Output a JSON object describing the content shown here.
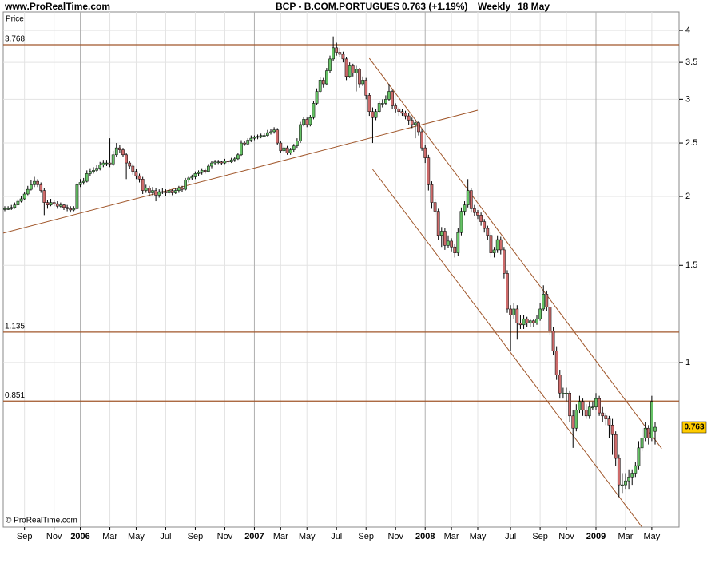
{
  "header": {
    "site": "www.ProRealTime.com",
    "symbol": "BCP - B.COM.PORTUGUES",
    "quote": "0.763 (+1.19%)",
    "period": "Weekly",
    "date": "18 May"
  },
  "footer": "© ProRealTime.com",
  "chart_data": {
    "type": "candlestick",
    "y_label": "Price",
    "log_scale": true,
    "grid": true,
    "up_color": "#66c266",
    "down_color": "#cd6b6b",
    "line_color": "#a0562a",
    "ylim": [
      0.503,
      4.32
    ],
    "yticks": [
      1,
      1.5,
      2,
      2.5,
      3,
      3.5,
      4
    ],
    "levels": [
      3.768,
      1.135,
      0.851
    ],
    "last_price": 0.763,
    "trendlines": [
      {
        "x": [
          -0.5,
          144
        ],
        "y": [
          1.716,
          2.867
        ]
      },
      {
        "x": [
          111,
          200
        ],
        "y": [
          3.56,
          0.698
        ]
      },
      {
        "x": [
          112,
          194
        ],
        "y": [
          2.24,
          0.503
        ]
      }
    ],
    "categories": [
      null,
      null,
      null,
      null,
      null,
      null,
      "Sep",
      null,
      null,
      null,
      null,
      null,
      null,
      null,
      null,
      "Nov",
      null,
      null,
      null,
      null,
      null,
      null,
      null,
      "2006",
      null,
      null,
      null,
      null,
      null,
      null,
      null,
      null,
      "Mar",
      null,
      null,
      null,
      null,
      null,
      null,
      null,
      "May",
      null,
      null,
      null,
      null,
      null,
      null,
      null,
      null,
      "Jul",
      null,
      null,
      null,
      null,
      null,
      null,
      null,
      null,
      "Sep",
      null,
      null,
      null,
      null,
      null,
      null,
      null,
      null,
      "Nov",
      null,
      null,
      null,
      null,
      null,
      null,
      null,
      null,
      "2007",
      null,
      null,
      null,
      null,
      null,
      null,
      null,
      "Mar",
      null,
      null,
      null,
      null,
      null,
      null,
      null,
      "May",
      null,
      null,
      null,
      null,
      null,
      null,
      null,
      null,
      "Jul",
      null,
      null,
      null,
      null,
      null,
      null,
      null,
      null,
      "Sep",
      null,
      null,
      null,
      null,
      null,
      null,
      null,
      null,
      "Nov",
      null,
      null,
      null,
      null,
      null,
      null,
      null,
      null,
      "2008",
      null,
      null,
      null,
      null,
      null,
      null,
      null,
      "Mar",
      null,
      null,
      null,
      null,
      null,
      null,
      null,
      "May",
      null,
      null,
      null,
      null,
      null,
      null,
      null,
      null,
      null,
      "Jul",
      null,
      null,
      null,
      null,
      null,
      null,
      null,
      null,
      "Sep",
      null,
      null,
      null,
      null,
      null,
      null,
      null,
      "Nov",
      null,
      null,
      null,
      null,
      null,
      null,
      null,
      null,
      "2009",
      null,
      null,
      null,
      null,
      null,
      null,
      null,
      null,
      "Mar",
      null,
      null,
      null,
      null,
      null,
      null,
      null,
      "May",
      null
    ],
    "candles": [
      [
        1.9,
        1.92,
        1.88,
        1.9
      ],
      [
        1.9,
        1.92,
        1.89,
        1.9
      ],
      [
        1.9,
        1.93,
        1.89,
        1.91
      ],
      [
        1.91,
        1.95,
        1.9,
        1.93
      ],
      [
        1.93,
        1.98,
        1.92,
        1.96
      ],
      [
        1.96,
        2.0,
        1.95,
        1.98
      ],
      [
        1.98,
        2.04,
        1.97,
        2.02
      ],
      [
        2.02,
        2.09,
        2.01,
        2.06
      ],
      [
        2.06,
        2.14,
        2.05,
        2.1
      ],
      [
        2.1,
        2.17,
        2.08,
        2.13
      ],
      [
        2.13,
        2.15,
        2.08,
        2.1
      ],
      [
        2.1,
        2.12,
        2.03,
        2.05
      ],
      [
        2.05,
        2.07,
        1.85,
        1.95
      ],
      [
        1.95,
        1.97,
        1.9,
        1.93
      ],
      [
        1.93,
        1.98,
        1.92,
        1.95
      ],
      [
        1.95,
        1.97,
        1.92,
        1.94
      ],
      [
        1.94,
        1.96,
        1.9,
        1.92
      ],
      [
        1.92,
        1.95,
        1.91,
        1.93
      ],
      [
        1.93,
        1.94,
        1.89,
        1.91
      ],
      [
        1.91,
        1.93,
        1.88,
        1.9
      ],
      [
        1.9,
        1.92,
        1.87,
        1.89
      ],
      [
        1.89,
        1.92,
        1.88,
        1.9
      ],
      [
        1.9,
        2.12,
        1.89,
        2.1
      ],
      [
        2.1,
        2.15,
        2.08,
        2.12
      ],
      [
        2.12,
        2.16,
        2.1,
        2.13
      ],
      [
        2.13,
        2.23,
        2.12,
        2.2
      ],
      [
        2.2,
        2.25,
        2.18,
        2.22
      ],
      [
        2.22,
        2.26,
        2.2,
        2.23
      ],
      [
        2.23,
        2.28,
        2.21,
        2.25
      ],
      [
        2.25,
        2.31,
        2.23,
        2.28
      ],
      [
        2.28,
        2.33,
        2.26,
        2.3
      ],
      [
        2.3,
        2.33,
        2.27,
        2.3
      ],
      [
        2.3,
        2.55,
        2.26,
        2.29
      ],
      [
        2.29,
        2.42,
        2.27,
        2.38
      ],
      [
        2.38,
        2.5,
        2.36,
        2.45
      ],
      [
        2.45,
        2.48,
        2.4,
        2.43
      ],
      [
        2.43,
        2.45,
        2.36,
        2.38
      ],
      [
        2.38,
        2.4,
        2.15,
        2.3
      ],
      [
        2.3,
        2.32,
        2.24,
        2.27
      ],
      [
        2.27,
        2.29,
        2.19,
        2.22
      ],
      [
        2.22,
        2.24,
        2.15,
        2.18
      ],
      [
        2.18,
        2.2,
        2.12,
        2.15
      ],
      [
        2.15,
        2.17,
        2.02,
        2.05
      ],
      [
        2.05,
        2.1,
        2.03,
        2.07
      ],
      [
        2.07,
        2.09,
        2.0,
        2.03
      ],
      [
        2.03,
        2.08,
        2.01,
        2.05
      ],
      [
        2.05,
        2.07,
        1.96,
        2.01
      ],
      [
        2.01,
        2.06,
        1.99,
        2.04
      ],
      [
        2.04,
        2.07,
        2.02,
        2.04
      ],
      [
        2.04,
        2.06,
        2.0,
        2.03
      ],
      [
        2.03,
        2.07,
        2.01,
        2.05
      ],
      [
        2.05,
        2.06,
        2.01,
        2.03
      ],
      [
        2.03,
        2.07,
        2.02,
        2.05
      ],
      [
        2.05,
        2.09,
        2.03,
        2.07
      ],
      [
        2.07,
        2.09,
        2.04,
        2.06
      ],
      [
        2.06,
        2.16,
        2.05,
        2.14
      ],
      [
        2.14,
        2.18,
        2.12,
        2.16
      ],
      [
        2.16,
        2.19,
        2.14,
        2.17
      ],
      [
        2.17,
        2.22,
        2.15,
        2.2
      ],
      [
        2.2,
        2.23,
        2.18,
        2.21
      ],
      [
        2.21,
        2.25,
        2.19,
        2.23
      ],
      [
        2.23,
        2.25,
        2.2,
        2.22
      ],
      [
        2.22,
        2.29,
        2.21,
        2.27
      ],
      [
        2.27,
        2.32,
        2.25,
        2.3
      ],
      [
        2.3,
        2.33,
        2.28,
        2.31
      ],
      [
        2.31,
        2.33,
        2.29,
        2.31
      ],
      [
        2.31,
        2.32,
        2.28,
        2.3
      ],
      [
        2.3,
        2.34,
        2.29,
        2.32
      ],
      [
        2.32,
        2.33,
        2.29,
        2.31
      ],
      [
        2.31,
        2.35,
        2.3,
        2.33
      ],
      [
        2.33,
        2.36,
        2.31,
        2.34
      ],
      [
        2.34,
        2.4,
        2.33,
        2.38
      ],
      [
        2.38,
        2.53,
        2.37,
        2.5
      ],
      [
        2.5,
        2.52,
        2.47,
        2.49
      ],
      [
        2.49,
        2.55,
        2.48,
        2.53
      ],
      [
        2.53,
        2.58,
        2.51,
        2.55
      ],
      [
        2.55,
        2.58,
        2.53,
        2.56
      ],
      [
        2.56,
        2.59,
        2.54,
        2.57
      ],
      [
        2.57,
        2.6,
        2.55,
        2.58
      ],
      [
        2.58,
        2.61,
        2.56,
        2.58
      ],
      [
        2.58,
        2.64,
        2.57,
        2.61
      ],
      [
        2.61,
        2.65,
        2.59,
        2.62
      ],
      [
        2.62,
        2.67,
        2.6,
        2.64
      ],
      [
        2.64,
        2.66,
        2.48,
        2.5
      ],
      [
        2.5,
        2.52,
        2.4,
        2.42
      ],
      [
        2.42,
        2.47,
        2.4,
        2.45
      ],
      [
        2.45,
        2.47,
        2.38,
        2.4
      ],
      [
        2.4,
        2.45,
        2.38,
        2.43
      ],
      [
        2.43,
        2.49,
        2.41,
        2.47
      ],
      [
        2.47,
        2.55,
        2.45,
        2.52
      ],
      [
        2.52,
        2.73,
        2.5,
        2.7
      ],
      [
        2.7,
        2.79,
        2.68,
        2.76
      ],
      [
        2.76,
        2.78,
        2.67,
        2.7
      ],
      [
        2.7,
        2.81,
        2.68,
        2.78
      ],
      [
        2.78,
        2.98,
        2.76,
        2.95
      ],
      [
        2.95,
        3.14,
        2.93,
        3.1
      ],
      [
        3.1,
        3.29,
        3.08,
        3.25
      ],
      [
        3.25,
        3.28,
        3.15,
        3.2
      ],
      [
        3.2,
        3.42,
        3.18,
        3.38
      ],
      [
        3.38,
        3.6,
        3.35,
        3.55
      ],
      [
        3.55,
        3.9,
        3.52,
        3.72
      ],
      [
        3.72,
        3.8,
        3.6,
        3.65
      ],
      [
        3.65,
        3.72,
        3.58,
        3.62
      ],
      [
        3.62,
        3.66,
        3.5,
        3.55
      ],
      [
        3.55,
        3.58,
        3.25,
        3.3
      ],
      [
        3.3,
        3.5,
        3.28,
        3.45
      ],
      [
        3.45,
        3.48,
        3.3,
        3.35
      ],
      [
        3.35,
        3.45,
        3.1,
        3.4
      ],
      [
        3.4,
        3.42,
        3.15,
        3.2
      ],
      [
        3.2,
        3.3,
        3.17,
        3.25
      ],
      [
        3.25,
        3.28,
        3.0,
        3.05
      ],
      [
        3.05,
        3.08,
        2.8,
        2.85
      ],
      [
        2.85,
        2.9,
        2.5,
        2.78
      ],
      [
        2.78,
        2.88,
        2.75,
        2.85
      ],
      [
        2.85,
        2.98,
        2.83,
        2.95
      ],
      [
        2.95,
        3.0,
        2.9,
        2.95
      ],
      [
        2.95,
        3.05,
        2.93,
        3.0
      ],
      [
        3.0,
        3.2,
        2.98,
        3.1
      ],
      [
        3.1,
        3.12,
        2.88,
        2.92
      ],
      [
        2.92,
        2.95,
        2.84,
        2.88
      ],
      [
        2.88,
        2.9,
        2.8,
        2.85
      ],
      [
        2.85,
        2.88,
        2.8,
        2.83
      ],
      [
        2.83,
        2.86,
        2.76,
        2.8
      ],
      [
        2.8,
        2.83,
        2.7,
        2.75
      ],
      [
        2.75,
        2.78,
        2.66,
        2.7
      ],
      [
        2.7,
        2.76,
        2.55,
        2.72
      ],
      [
        2.72,
        2.74,
        2.58,
        2.62
      ],
      [
        2.62,
        2.65,
        2.42,
        2.45
      ],
      [
        2.45,
        2.48,
        2.3,
        2.35
      ],
      [
        2.35,
        2.38,
        2.05,
        2.1
      ],
      [
        2.1,
        2.13,
        1.9,
        1.95
      ],
      [
        1.95,
        1.98,
        1.85,
        1.88
      ],
      [
        1.88,
        1.9,
        1.67,
        1.7
      ],
      [
        1.7,
        1.76,
        1.62,
        1.73
      ],
      [
        1.73,
        1.75,
        1.6,
        1.63
      ],
      [
        1.63,
        1.7,
        1.61,
        1.66
      ],
      [
        1.66,
        1.68,
        1.59,
        1.62
      ],
      [
        1.62,
        1.64,
        1.55,
        1.58
      ],
      [
        1.58,
        1.75,
        1.56,
        1.72
      ],
      [
        1.72,
        1.91,
        1.7,
        1.88
      ],
      [
        1.88,
        1.96,
        1.85,
        1.93
      ],
      [
        1.93,
        2.15,
        1.91,
        2.05
      ],
      [
        2.05,
        2.07,
        1.87,
        1.9
      ],
      [
        1.9,
        1.93,
        1.84,
        1.87
      ],
      [
        1.87,
        1.89,
        1.82,
        1.85
      ],
      [
        1.85,
        1.87,
        1.77,
        1.8
      ],
      [
        1.8,
        1.82,
        1.72,
        1.75
      ],
      [
        1.75,
        1.77,
        1.67,
        1.7
      ],
      [
        1.7,
        1.72,
        1.55,
        1.58
      ],
      [
        1.58,
        1.62,
        1.55,
        1.6
      ],
      [
        1.6,
        1.7,
        1.58,
        1.67
      ],
      [
        1.67,
        1.69,
        1.57,
        1.6
      ],
      [
        1.6,
        1.62,
        1.42,
        1.45
      ],
      [
        1.45,
        1.47,
        1.23,
        1.25
      ],
      [
        1.25,
        1.27,
        1.05,
        1.22
      ],
      [
        1.22,
        1.28,
        1.2,
        1.25
      ],
      [
        1.25,
        1.27,
        1.1,
        1.18
      ],
      [
        1.18,
        1.22,
        1.15,
        1.17
      ],
      [
        1.17,
        1.22,
        1.15,
        1.2
      ],
      [
        1.2,
        1.21,
        1.16,
        1.18
      ],
      [
        1.18,
        1.2,
        1.16,
        1.19
      ],
      [
        1.19,
        1.2,
        1.16,
        1.18
      ],
      [
        1.18,
        1.22,
        1.17,
        1.2
      ],
      [
        1.2,
        1.28,
        1.19,
        1.25
      ],
      [
        1.25,
        1.38,
        1.24,
        1.33
      ],
      [
        1.33,
        1.35,
        1.24,
        1.26
      ],
      [
        1.26,
        1.28,
        1.12,
        1.14
      ],
      [
        1.14,
        1.16,
        1.03,
        1.05
      ],
      [
        1.05,
        1.07,
        0.93,
        0.95
      ],
      [
        0.95,
        0.97,
        0.86,
        0.88
      ],
      [
        0.88,
        0.9,
        0.86,
        0.88
      ],
      [
        0.88,
        0.9,
        0.85,
        0.88
      ],
      [
        0.88,
        0.89,
        0.78,
        0.8
      ],
      [
        0.8,
        0.82,
        0.7,
        0.76
      ],
      [
        0.76,
        0.84,
        0.75,
        0.82
      ],
      [
        0.82,
        0.87,
        0.81,
        0.85
      ],
      [
        0.85,
        0.86,
        0.8,
        0.82
      ],
      [
        0.82,
        0.84,
        0.79,
        0.8
      ],
      [
        0.8,
        0.85,
        0.79,
        0.83
      ],
      [
        0.83,
        0.85,
        0.82,
        0.83
      ],
      [
        0.83,
        0.88,
        0.82,
        0.86
      ],
      [
        0.86,
        0.87,
        0.8,
        0.81
      ],
      [
        0.81,
        0.83,
        0.78,
        0.8
      ],
      [
        0.8,
        0.81,
        0.77,
        0.79
      ],
      [
        0.79,
        0.8,
        0.73,
        0.77
      ],
      [
        0.77,
        0.79,
        0.68,
        0.74
      ],
      [
        0.74,
        0.75,
        0.65,
        0.67
      ],
      [
        0.67,
        0.68,
        0.57,
        0.6
      ],
      [
        0.6,
        0.63,
        0.58,
        0.6
      ],
      [
        0.6,
        0.63,
        0.59,
        0.61
      ],
      [
        0.61,
        0.64,
        0.59,
        0.62
      ],
      [
        0.62,
        0.64,
        0.6,
        0.63
      ],
      [
        0.63,
        0.66,
        0.62,
        0.65
      ],
      [
        0.65,
        0.72,
        0.64,
        0.7
      ],
      [
        0.7,
        0.76,
        0.69,
        0.73
      ],
      [
        0.73,
        0.78,
        0.72,
        0.76
      ],
      [
        0.76,
        0.77,
        0.71,
        0.73
      ],
      [
        0.73,
        0.87,
        0.72,
        0.85
      ],
      [
        0.75,
        0.78,
        0.71,
        0.763
      ]
    ]
  }
}
